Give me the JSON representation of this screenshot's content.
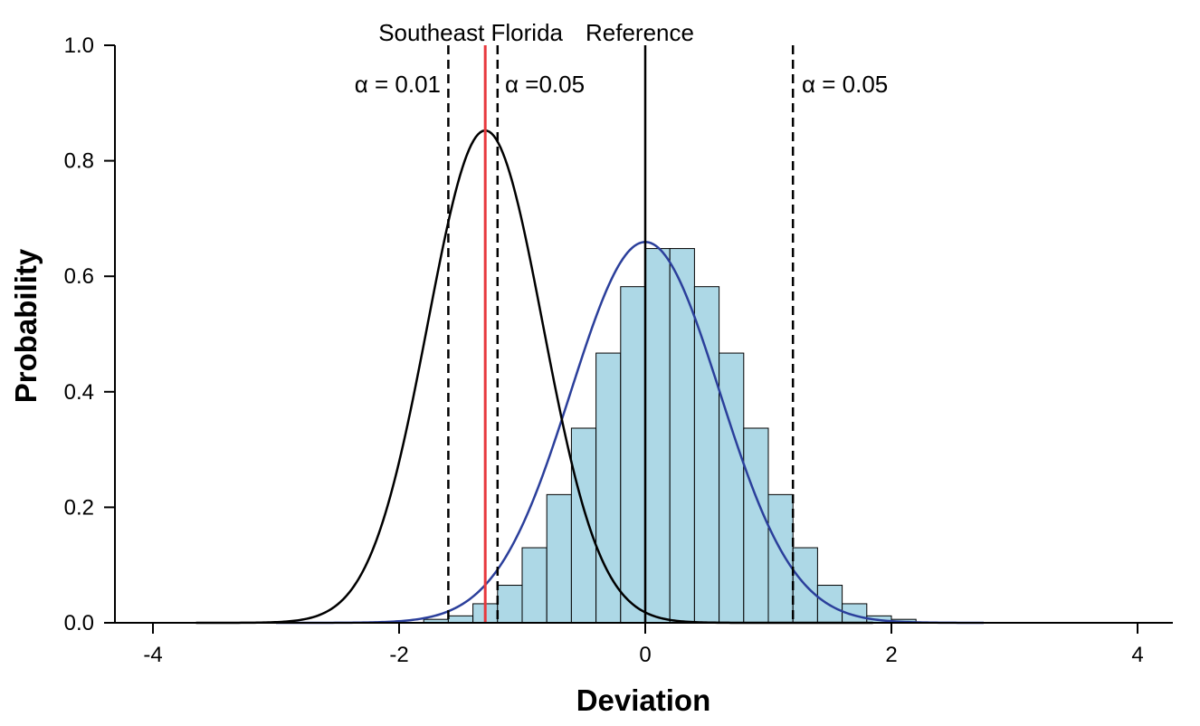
{
  "chart_data": {
    "type": "bar",
    "title": "",
    "xlabel": "Deviation",
    "ylabel": "Probability",
    "xlim": [
      -4,
      4
    ],
    "ylim": [
      0,
      1
    ],
    "xticks": [
      -4,
      -2,
      0,
      2,
      4
    ],
    "xtick_labels": [
      "-4",
      "-2",
      "0",
      "2",
      "4"
    ],
    "yticks": [
      0,
      0.2,
      0.4,
      0.6,
      0.8,
      1.0
    ],
    "ytick_labels": [
      "0.0",
      "0.2",
      "0.4",
      "0.6",
      "0.8",
      "1.0"
    ],
    "grid": false,
    "histogram": {
      "bin_width": 0.2,
      "fill_color": "#add8e6",
      "edge_color": "#000000",
      "bins": [
        {
          "left": -1.8,
          "value": 0.006
        },
        {
          "left": -1.6,
          "value": 0.012
        },
        {
          "left": -1.4,
          "value": 0.033
        },
        {
          "left": -1.2,
          "value": 0.065
        },
        {
          "left": -1.0,
          "value": 0.13
        },
        {
          "left": -0.8,
          "value": 0.222
        },
        {
          "left": -0.6,
          "value": 0.337
        },
        {
          "left": -0.4,
          "value": 0.467
        },
        {
          "left": -0.2,
          "value": 0.582
        },
        {
          "left": 0.0,
          "value": 0.648
        },
        {
          "left": 0.2,
          "value": 0.648
        },
        {
          "left": 0.4,
          "value": 0.582
        },
        {
          "left": 0.6,
          "value": 0.467
        },
        {
          "left": 0.8,
          "value": 0.337
        },
        {
          "left": 1.0,
          "value": 0.222
        },
        {
          "left": 1.2,
          "value": 0.13
        },
        {
          "left": 1.4,
          "value": 0.065
        },
        {
          "left": 1.6,
          "value": 0.033
        },
        {
          "left": 1.8,
          "value": 0.012
        },
        {
          "left": 2.0,
          "value": 0.006
        }
      ]
    },
    "curves": [
      {
        "color": "#2b3f9b",
        "distribution": "normal",
        "mean": 0.0,
        "sd": 0.605,
        "x_range": [
          -3.0,
          2.75
        ]
      },
      {
        "color": "#000000",
        "distribution": "normal",
        "mean": -1.3,
        "sd": 0.468,
        "x_range": [
          -3.65,
          1.85
        ]
      }
    ],
    "vertical_lines": [
      {
        "x": -1.6,
        "style": "dashed",
        "color": "#000000"
      },
      {
        "x": -1.2,
        "style": "dashed",
        "color": "#000000"
      },
      {
        "x": 1.2,
        "style": "dashed",
        "color": "#000000"
      },
      {
        "x": 0.0,
        "style": "solid",
        "color": "#000000"
      },
      {
        "x": -1.3,
        "style": "solid",
        "color": "#e8383d"
      }
    ],
    "annotations": [
      {
        "text": "Southeast Florida",
        "color": "#e8383d"
      },
      {
        "text": "Reference",
        "color": "#000000"
      },
      {
        "text": "α = 0.01",
        "color": "#000000"
      },
      {
        "text": "α =0.05",
        "color": "#000000"
      },
      {
        "text": "α = 0.05",
        "color": "#000000"
      }
    ]
  }
}
